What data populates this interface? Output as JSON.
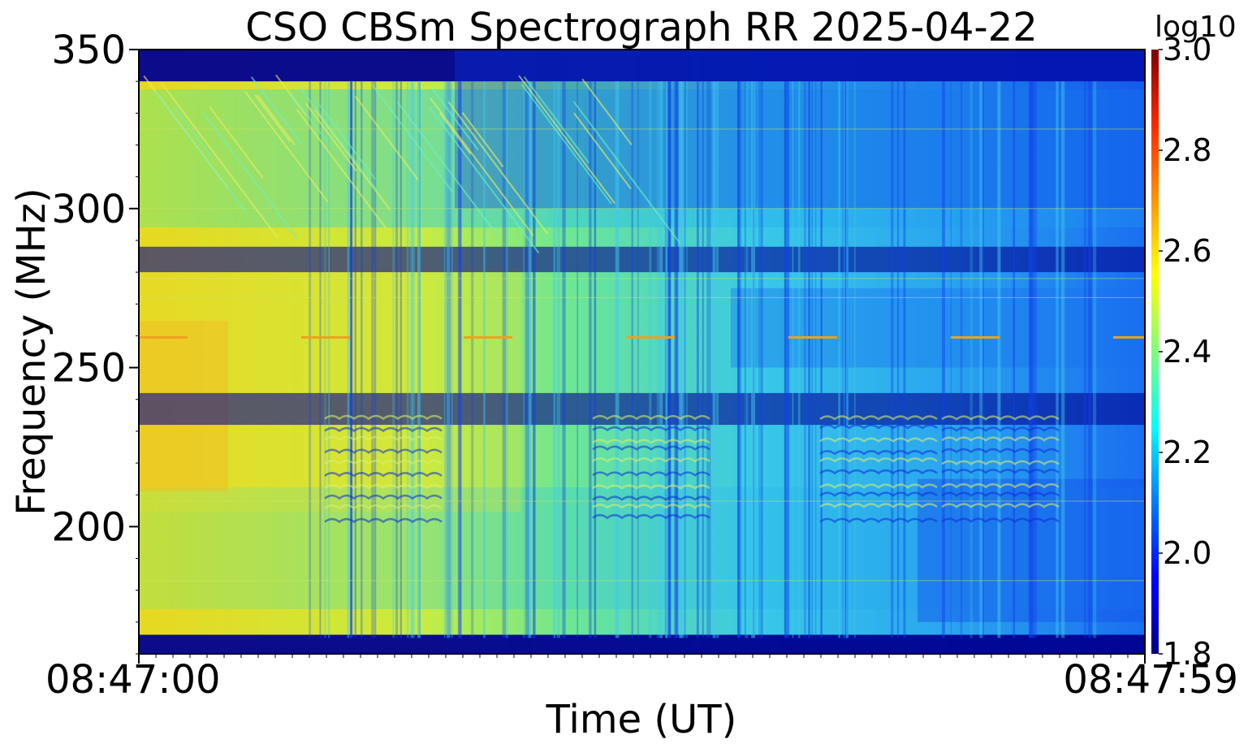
{
  "chart_data": {
    "type": "heatmap",
    "title": "CSO CBSm Spectrograph RR 2025-04-22",
    "xlabel": "Time (UT)",
    "ylabel": "Frequency (MHz)",
    "x_range": [
      "08:47:00",
      "08:47:59"
    ],
    "x_tick_labels": [
      "08:47:00",
      "08:47:59"
    ],
    "ylim": [
      160,
      350
    ],
    "y_ticks": [
      200,
      250,
      300,
      350
    ],
    "y_tick_labels": [
      "200",
      "250",
      "300",
      "350"
    ],
    "colorbar": {
      "label": "log10",
      "range": [
        1.8,
        3.0
      ],
      "ticks": [
        1.8,
        2.0,
        2.2,
        2.4,
        2.6,
        2.8,
        3.0
      ],
      "tick_labels": [
        "1.8",
        "2.0",
        "2.2",
        "2.4",
        "2.6",
        "2.8",
        "3.0"
      ],
      "colormap": "jet"
    },
    "bands": [
      {
        "f_min": 340,
        "f_max": 350,
        "value": 1.85
      },
      {
        "f_min": 280,
        "f_max": 288,
        "value": 1.95
      },
      {
        "f_min": 232,
        "f_max": 242,
        "value": 2.0
      },
      {
        "f_min": 160,
        "f_max": 166,
        "value": 1.85
      }
    ],
    "persistent_line_mhz": 259.5,
    "grid": false
  }
}
